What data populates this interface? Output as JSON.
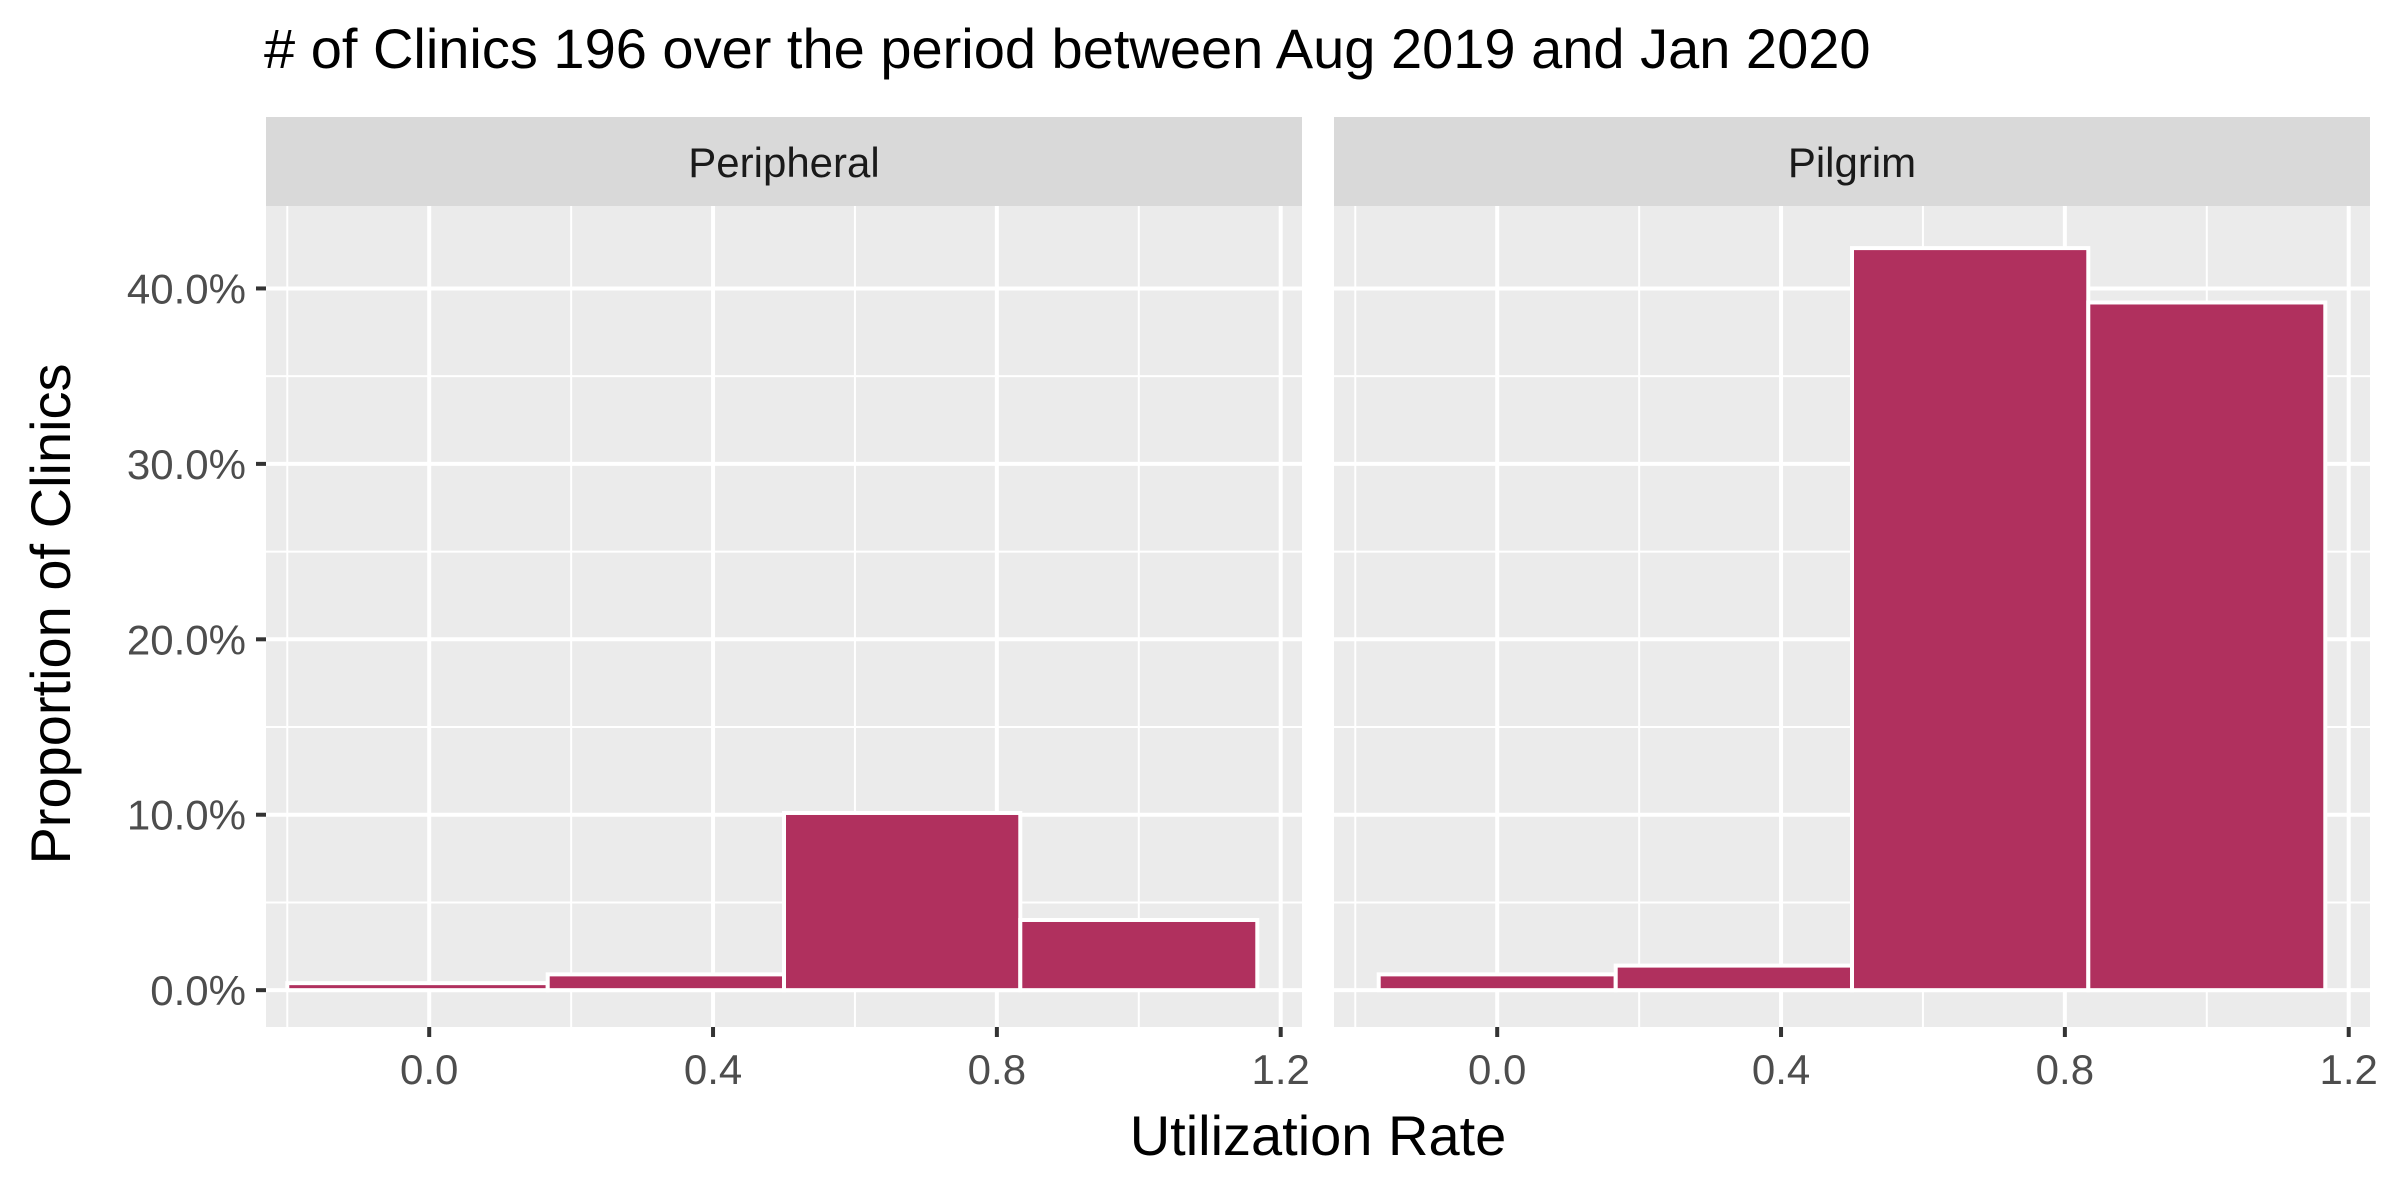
{
  "chart_data": {
    "type": "bar",
    "title": "# of Clinics 196 over the period between Aug 2019 and Jan 2020",
    "xlabel": "Utilization Rate",
    "ylabel": "Proportion of Clinics",
    "xlim": [
      -0.23,
      1.23
    ],
    "ylim": [
      -0.021,
      0.447
    ],
    "x_ticks": [
      {
        "value": 0.0,
        "label": "0.0"
      },
      {
        "value": 0.4,
        "label": "0.4"
      },
      {
        "value": 0.8,
        "label": "0.8"
      },
      {
        "value": 1.2,
        "label": "1.2"
      }
    ],
    "y_ticks": [
      {
        "value": 0.0,
        "label": "0.0%"
      },
      {
        "value": 0.1,
        "label": "10.0%"
      },
      {
        "value": 0.2,
        "label": "20.0%"
      },
      {
        "value": 0.3,
        "label": "30.0%"
      },
      {
        "value": 0.4,
        "label": "40.0%"
      }
    ],
    "grid": true,
    "colors": {
      "bar_fill": "#B0305E",
      "bar_outline": "#FFFFFF",
      "panel_bg": "#EBEBEB",
      "strip_bg": "#D9D9D9",
      "grid": "#FFFFFF"
    },
    "panels": [
      {
        "label": "Peripheral",
        "bins": [
          {
            "x_start": -0.2,
            "x_end": 0.167,
            "value": 0.004
          },
          {
            "x_start": 0.167,
            "x_end": 0.5,
            "value": 0.009
          },
          {
            "x_start": 0.5,
            "x_end": 0.833,
            "value": 0.101
          },
          {
            "x_start": 0.833,
            "x_end": 1.167,
            "value": 0.04
          }
        ]
      },
      {
        "label": "Pilgrim",
        "bins": [
          {
            "x_start": -0.167,
            "x_end": 0.167,
            "value": 0.009
          },
          {
            "x_start": 0.167,
            "x_end": 0.5,
            "value": 0.014
          },
          {
            "x_start": 0.5,
            "x_end": 0.833,
            "value": 0.423
          },
          {
            "x_start": 0.833,
            "x_end": 1.167,
            "value": 0.392
          }
        ]
      }
    ]
  }
}
